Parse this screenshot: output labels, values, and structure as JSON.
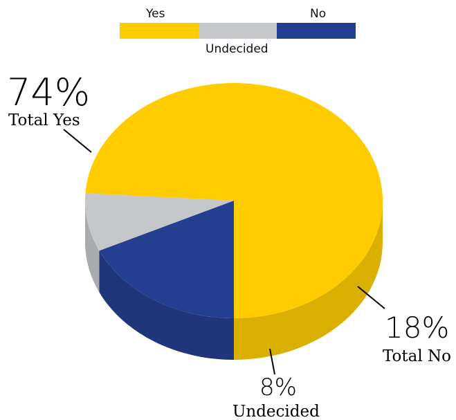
{
  "chart_data": {
    "type": "pie",
    "style": "3d",
    "categories": [
      "Yes",
      "Undecided",
      "No"
    ],
    "values": [
      74,
      8,
      18
    ],
    "unit": "%",
    "colors": {
      "Yes": "#FFCC00",
      "Undecided": "#C5C7CA",
      "No": "#243F8F"
    },
    "legend": {
      "placement": "top-center",
      "entries": [
        "Yes",
        "Undecided",
        "No"
      ]
    },
    "annotations": {
      "yes": {
        "value": "74%",
        "caption": "Total Yes"
      },
      "no": {
        "value": "18%",
        "caption": "Total No"
      },
      "undecided": {
        "value": "8%",
        "caption": "Undecided"
      }
    }
  }
}
